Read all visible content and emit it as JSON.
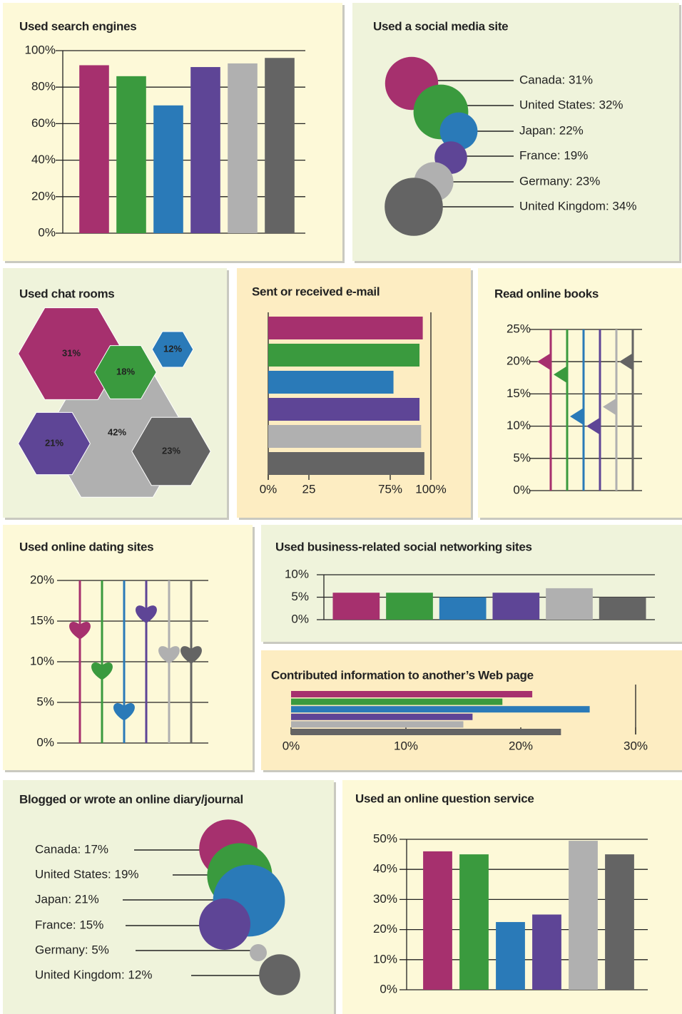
{
  "chart_data": [
    {
      "type": "bar",
      "title": "Used search engines",
      "values": [
        92,
        86,
        70,
        91,
        93,
        96
      ],
      "colors": [
        "#a6306e",
        "#3a9a3e",
        "#2a7ab8",
        "#5e4596",
        "#b0b0b0",
        "#646464"
      ],
      "ylim": [
        0,
        100
      ],
      "yticks": [
        {
          "value": 0,
          "label": "0%"
        },
        {
          "value": 20,
          "label": "20%"
        },
        {
          "value": 40,
          "label": "40%"
        },
        {
          "value": 60,
          "label": "60%"
        },
        {
          "value": 80,
          "label": "80%"
        },
        {
          "value": 100,
          "label": "100%"
        }
      ],
      "grid": true
    },
    {
      "type": "bubble",
      "title": "Used a social media site",
      "values": [
        31,
        32,
        22,
        19,
        23,
        34
      ],
      "value_labels": [
        "Canada: 31%",
        "United States: 32%",
        "Japan: 22%",
        "France: 19%",
        "Germany: 23%",
        "United Kingdom: 34%"
      ],
      "colors": [
        "#a6306e",
        "#3a9a3e",
        "#2a7ab8",
        "#5e4596",
        "#b0b0b0",
        "#646464"
      ]
    },
    {
      "type": "hexagon",
      "title": "Used chat rooms",
      "values": [
        31,
        18,
        12,
        21,
        42,
        23
      ],
      "value_labels": [
        "31%",
        "18%",
        "12%",
        "21%",
        "42%",
        "23%"
      ],
      "colors": [
        "#a6306e",
        "#3a9a3e",
        "#2a7ab8",
        "#5e4596",
        "#b0b0b0",
        "#646464"
      ]
    },
    {
      "type": "hbar",
      "title": "Sent or received e-mail",
      "values": [
        95,
        93,
        77,
        93,
        94,
        96
      ],
      "colors": [
        "#a6306e",
        "#3a9a3e",
        "#2a7ab8",
        "#5e4596",
        "#b0b0b0",
        "#646464"
      ],
      "xlim": [
        0,
        100
      ],
      "xticks": [
        {
          "value": 0,
          "label": "0%"
        },
        25,
        {
          "value": 75,
          "label": "75%"
        },
        {
          "value": 100,
          "label": "100%"
        }
      ]
    },
    {
      "type": "marker",
      "marker": "triangle",
      "title": "Read online books",
      "values": [
        20,
        18,
        11.5,
        10,
        13,
        20
      ],
      "colors": [
        "#a6306e",
        "#3a9a3e",
        "#2a7ab8",
        "#5e4596",
        "#b0b0b0",
        "#646464"
      ],
      "ylim": [
        0,
        25
      ],
      "yticks": [
        {
          "value": 0,
          "label": "0%"
        },
        {
          "value": 5,
          "label": "5%"
        },
        {
          "value": 10,
          "label": "10%"
        },
        {
          "value": 15,
          "label": "15%"
        },
        {
          "value": 20,
          "label": "20%"
        },
        {
          "value": 25,
          "label": "25%"
        }
      ],
      "grid": true
    },
    {
      "type": "marker",
      "marker": "heart",
      "title": "Used online dating sites",
      "values": [
        14,
        9,
        4,
        16,
        11,
        11
      ],
      "colors": [
        "#a6306e",
        "#3a9a3e",
        "#2a7ab8",
        "#5e4596",
        "#b0b0b0",
        "#646464"
      ],
      "ylim": [
        0,
        20
      ],
      "yticks": [
        {
          "value": 0,
          "label": "0%"
        },
        {
          "value": 5,
          "label": "5%"
        },
        {
          "value": 10,
          "label": "10%"
        },
        {
          "value": 15,
          "label": "15%"
        },
        {
          "value": 20,
          "label": "20%"
        }
      ],
      "grid": true
    },
    {
      "type": "bar",
      "title": "Used business-related social networking sites",
      "values": [
        6,
        6,
        5,
        6,
        7,
        5
      ],
      "colors": [
        "#a6306e",
        "#3a9a3e",
        "#2a7ab8",
        "#5e4596",
        "#b0b0b0",
        "#646464"
      ],
      "ylim": [
        0,
        10
      ],
      "yticks": [
        {
          "value": 0,
          "label": "0%"
        },
        {
          "value": 5,
          "label": "5%"
        },
        {
          "value": 10,
          "label": "10%"
        }
      ],
      "grid": true
    },
    {
      "type": "hbar",
      "title": "Contributed information to another’s Web page",
      "values": [
        21,
        18.4,
        26,
        15.8,
        15,
        23.5
      ],
      "colors": [
        "#a6306e",
        "#3a9a3e",
        "#2a7ab8",
        "#5e4596",
        "#b0b0b0",
        "#646464"
      ],
      "xlim": [
        0,
        30
      ],
      "xticks": [
        {
          "value": 0,
          "label": "0%"
        },
        {
          "value": 10,
          "label": "10%"
        },
        {
          "value": 20,
          "label": "20%"
        },
        {
          "value": 30,
          "label": "30%"
        }
      ]
    },
    {
      "type": "bubble",
      "title": "Blogged or wrote an online diary/journal",
      "values": [
        17,
        19,
        21,
        15,
        5,
        12
      ],
      "value_labels": [
        "Canada: 17%",
        "United States: 19%",
        "Japan: 21%",
        "France: 15%",
        "Germany: 5%",
        "United Kingdom: 12%"
      ],
      "colors": [
        "#a6306e",
        "#3a9a3e",
        "#2a7ab8",
        "#5e4596",
        "#b0b0b0",
        "#646464"
      ]
    },
    {
      "type": "bar",
      "title": "Used an online question service",
      "values": [
        46,
        45,
        22.5,
        25,
        49.5,
        45
      ],
      "colors": [
        "#a6306e",
        "#3a9a3e",
        "#2a7ab8",
        "#5e4596",
        "#b0b0b0",
        "#646464"
      ],
      "ylim": [
        0,
        50
      ],
      "yticks": [
        {
          "value": 0,
          "label": "0%"
        },
        {
          "value": 10,
          "label": "10%"
        },
        {
          "value": 20,
          "label": "20%"
        },
        {
          "value": 30,
          "label": "30%"
        },
        {
          "value": 40,
          "label": "40%"
        },
        {
          "value": 50,
          "label": "50%"
        }
      ],
      "grid": true
    }
  ]
}
